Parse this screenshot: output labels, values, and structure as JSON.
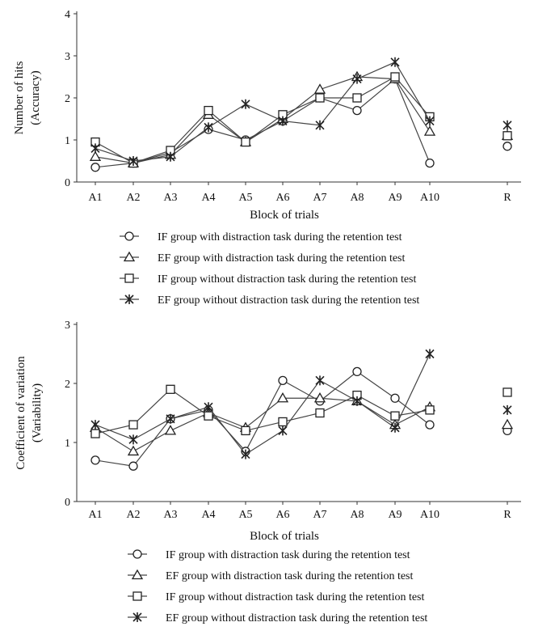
{
  "chart_data": [
    {
      "type": "line",
      "categories": [
        "A1",
        "A2",
        "A3",
        "A4",
        "A5",
        "A6",
        "A7",
        "A8",
        "A9",
        "A10",
        "R"
      ],
      "xlabel": "Block of trials",
      "ylabel_lines": [
        "Number of hits",
        "(Accuracy)"
      ],
      "ylim": [
        0,
        4
      ],
      "yticks": [
        0,
        1,
        2,
        3,
        4
      ],
      "grid": false,
      "legend_position": "bottom",
      "series": [
        {
          "name": "IF group with distraction task during the retention test",
          "marker": "circle",
          "values": [
            0.35,
            0.45,
            0.7,
            1.25,
            1.0,
            1.45,
            2.0,
            1.7,
            2.45,
            0.45,
            0.85
          ]
        },
        {
          "name": "EF group with distraction task during the retention test",
          "marker": "triangle",
          "values": [
            0.6,
            0.45,
            0.65,
            1.6,
            0.95,
            1.5,
            2.2,
            2.5,
            2.45,
            1.2,
            1.1
          ]
        },
        {
          "name": "IF group without distraction task during the retention test",
          "marker": "square",
          "values": [
            0.95,
            0.45,
            0.75,
            1.7,
            0.95,
            1.6,
            2.0,
            2.0,
            2.5,
            1.55,
            1.1
          ]
        },
        {
          "name": "EF group without distraction task during the retention test",
          "marker": "star",
          "values": [
            0.8,
            0.5,
            0.6,
            1.3,
            1.85,
            1.45,
            1.35,
            2.45,
            2.85,
            1.45,
            1.35
          ]
        }
      ]
    },
    {
      "type": "line",
      "categories": [
        "A1",
        "A2",
        "A3",
        "A4",
        "A5",
        "A6",
        "A7",
        "A8",
        "A9",
        "A10",
        "R"
      ],
      "xlabel": "Block of trials",
      "ylabel_lines": [
        "Coefficient  of variation",
        "(Variability)"
      ],
      "ylim": [
        0,
        3
      ],
      "yticks": [
        0,
        1,
        2,
        3
      ],
      "grid": false,
      "legend_position": "bottom",
      "series": [
        {
          "name": "IF group with distraction task during the retention test",
          "marker": "circle",
          "values": [
            0.7,
            0.6,
            1.4,
            1.55,
            0.85,
            2.05,
            1.7,
            2.2,
            1.75,
            1.3,
            1.2
          ]
        },
        {
          "name": "EF group with distraction task during the retention test",
          "marker": "triangle",
          "values": [
            1.25,
            0.85,
            1.2,
            1.5,
            1.25,
            1.75,
            1.75,
            1.7,
            1.3,
            1.6,
            1.3
          ]
        },
        {
          "name": "IF group without distraction task during the retention test",
          "marker": "square",
          "values": [
            1.15,
            1.3,
            1.9,
            1.45,
            1.2,
            1.35,
            1.5,
            1.8,
            1.45,
            1.55,
            1.85
          ]
        },
        {
          "name": "EF group without distraction task during the retention test",
          "marker": "star",
          "values": [
            1.3,
            1.05,
            1.4,
            1.6,
            0.8,
            1.2,
            2.05,
            1.7,
            1.25,
            2.5,
            1.55
          ]
        }
      ]
    }
  ]
}
